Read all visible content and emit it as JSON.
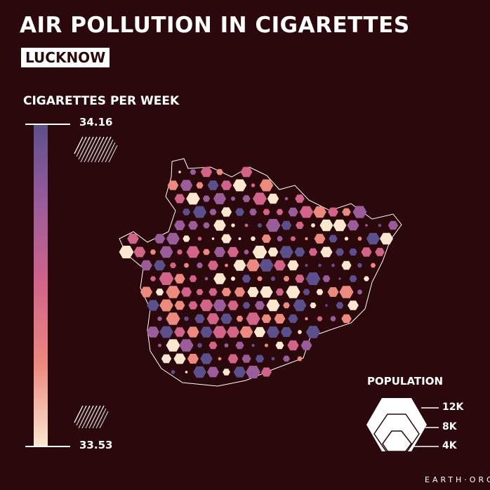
{
  "header": {
    "title": "AIR POLLUTION IN CIGARETTES",
    "city": "LUCKNOW"
  },
  "color_legend": {
    "title": "CIGARETTES PER WEEK",
    "max_label": "34.16",
    "min_label": "33.53",
    "max_icon": "cigarette-pack-large-icon",
    "min_icon": "cigarette-pack-small-icon",
    "colors": [
      "#5b4f8c",
      "#9b5c9a",
      "#d2648a",
      "#ec8a80",
      "#fbe7d0"
    ]
  },
  "size_legend": {
    "title": "POPULATION",
    "items": [
      {
        "label": "12K"
      },
      {
        "label": "8K"
      },
      {
        "label": "4K"
      }
    ]
  },
  "brand": "EARTH·ORG",
  "colors": {
    "background": "#2a080c",
    "outline": "#ffffff"
  }
}
